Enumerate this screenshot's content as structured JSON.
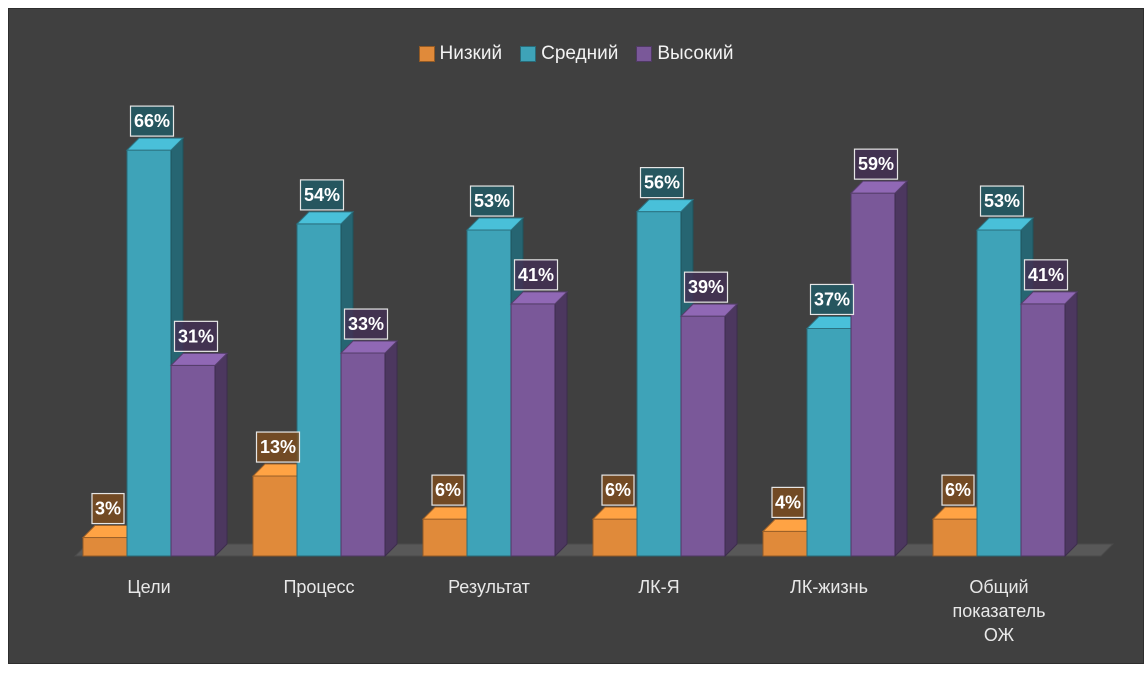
{
  "chart_data": {
    "type": "bar",
    "categories": [
      "Цели",
      "Процесс",
      "Результат",
      "ЛК-Я",
      "ЛК-жизнь",
      "Общий показатель ОЖ"
    ],
    "category_lines": [
      [
        "Цели"
      ],
      [
        "Процесс"
      ],
      [
        "Результат"
      ],
      [
        "ЛК-Я"
      ],
      [
        "ЛК-жизнь"
      ],
      [
        "Общий",
        "показатель",
        "ОЖ"
      ]
    ],
    "series": [
      {
        "name": "Низкий",
        "values": [
          3,
          13,
          6,
          6,
          4,
          6
        ],
        "labels": [
          "3%",
          "13%",
          "6%",
          "6%",
          "4%",
          "6%"
        ],
        "color": "#e08a3a"
      },
      {
        "name": "Средний",
        "values": [
          66,
          54,
          53,
          56,
          37,
          53
        ],
        "labels": [
          "66%",
          "54%",
          "53%",
          "56%",
          "37%",
          "53%"
        ],
        "color": "#3ea3b8"
      },
      {
        "name": "Высокий",
        "values": [
          31,
          33,
          41,
          39,
          59,
          41
        ],
        "labels": [
          "31%",
          "33%",
          "41%",
          "39%",
          "59%",
          "41%"
        ],
        "color": "#7a5899"
      }
    ],
    "unit": "%",
    "legend_position": "top",
    "three_d": true,
    "grid": false,
    "background": "#404040"
  }
}
